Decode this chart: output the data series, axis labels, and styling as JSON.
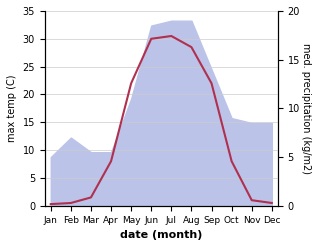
{
  "months": [
    "Jan",
    "Feb",
    "Mar",
    "Apr",
    "May",
    "Jun",
    "Jul",
    "Aug",
    "Sep",
    "Oct",
    "Nov",
    "Dec"
  ],
  "month_positions": [
    0,
    1,
    2,
    3,
    4,
    5,
    6,
    7,
    8,
    9,
    10,
    11
  ],
  "temperature": [
    0.3,
    0.5,
    1.5,
    8.0,
    22.0,
    30.0,
    30.5,
    28.5,
    22.0,
    8.0,
    1.0,
    0.5
  ],
  "precipitation": [
    5.0,
    7.0,
    5.5,
    5.5,
    11.0,
    18.5,
    19.0,
    19.0,
    14.0,
    9.0,
    8.5,
    8.5
  ],
  "temp_color": "#b03050",
  "precip_fill_color": "#bbc4e8",
  "temp_ylim": [
    0,
    35
  ],
  "precip_ylim": [
    0,
    20
  ],
  "temp_yticks": [
    0,
    5,
    10,
    15,
    20,
    25,
    30,
    35
  ],
  "precip_yticks": [
    0,
    5,
    10,
    15,
    20
  ],
  "ylabel_left": "max temp (C)",
  "ylabel_right": "med. precipitation (kg/m2)",
  "xlabel": "date (month)",
  "background_color": "#ffffff",
  "grid_color": "#cccccc"
}
